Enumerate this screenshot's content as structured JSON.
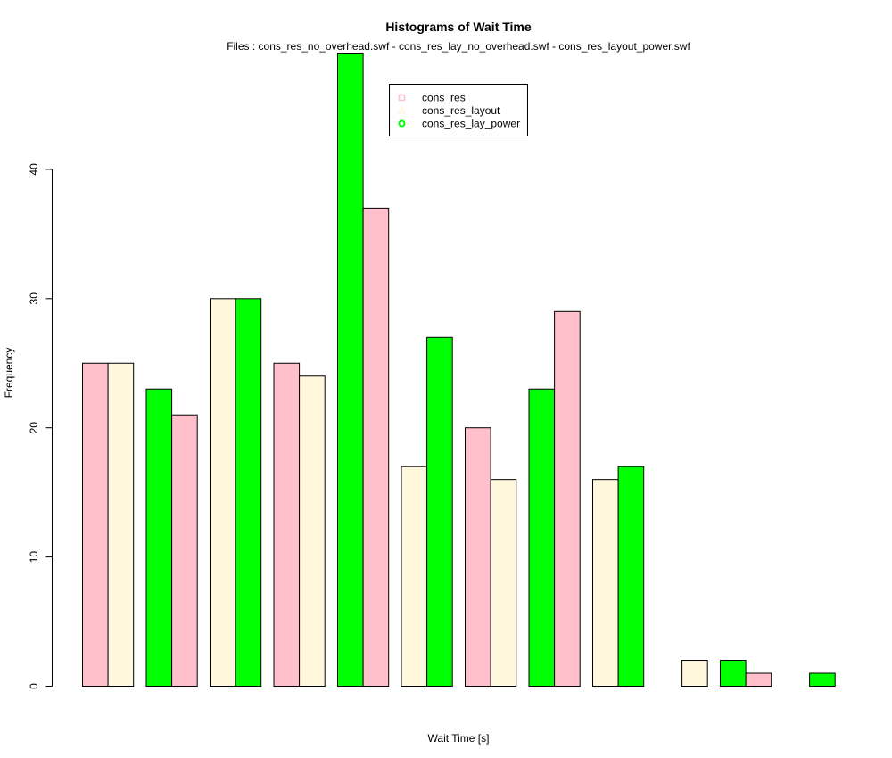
{
  "chart_data": {
    "type": "bar",
    "title": "Histograms of Wait Time",
    "subtitle": "Files : cons_res_no_overhead.swf - cons_res_lay_no_overhead.swf - cons_res_layout_power.swf",
    "xlabel": "Wait Time [s]",
    "ylabel": "Frequency",
    "ylim": [
      0,
      49
    ],
    "yticks": [
      0,
      10,
      20,
      30,
      40
    ],
    "legend_position": "top-center",
    "legend": [
      {
        "name": "cons_res",
        "color": "#FFC0CB"
      },
      {
        "name": "cons_res_layout",
        "color": "#FFF8DC"
      },
      {
        "name": "cons_res_lay_power",
        "color": "#00FF00"
      }
    ],
    "groups": [
      {
        "bars": [
          {
            "color": "#FFC0CB",
            "value": 25
          },
          {
            "color": "#FFF8DC",
            "value": 25
          }
        ]
      },
      {
        "bars": [
          {
            "color": "#00FF00",
            "value": 23
          },
          {
            "color": "#FFC0CB",
            "value": 21
          }
        ]
      },
      {
        "bars": [
          {
            "color": "#FFF8DC",
            "value": 30
          },
          {
            "color": "#00FF00",
            "value": 30
          }
        ]
      },
      {
        "bars": [
          {
            "color": "#FFC0CB",
            "value": 25
          },
          {
            "color": "#FFF8DC",
            "value": 24
          }
        ]
      },
      {
        "bars": [
          {
            "color": "#00FF00",
            "value": 49
          },
          {
            "color": "#FFC0CB",
            "value": 37
          }
        ]
      },
      {
        "bars": [
          {
            "color": "#FFF8DC",
            "value": 17
          },
          {
            "color": "#00FF00",
            "value": 27
          }
        ]
      },
      {
        "bars": [
          {
            "color": "#FFC0CB",
            "value": 20
          },
          {
            "color": "#FFF8DC",
            "value": 16
          }
        ]
      },
      {
        "bars": [
          {
            "color": "#00FF00",
            "value": 23
          },
          {
            "color": "#FFC0CB",
            "value": 29
          }
        ]
      },
      {
        "bars": [
          {
            "color": "#FFF8DC",
            "value": 16
          },
          {
            "color": "#00FF00",
            "value": 17
          }
        ]
      },
      {
        "bars": [
          {
            "color": "#FFC0CB",
            "value": 0
          },
          {
            "color": "#FFF8DC",
            "value": 2
          }
        ]
      },
      {
        "bars": [
          {
            "color": "#00FF00",
            "value": 2
          },
          {
            "color": "#FFC0CB",
            "value": 1
          }
        ]
      },
      {
        "bars": [
          {
            "color": "#FFF8DC",
            "value": 0
          },
          {
            "color": "#00FF00",
            "value": 1
          }
        ]
      }
    ]
  }
}
